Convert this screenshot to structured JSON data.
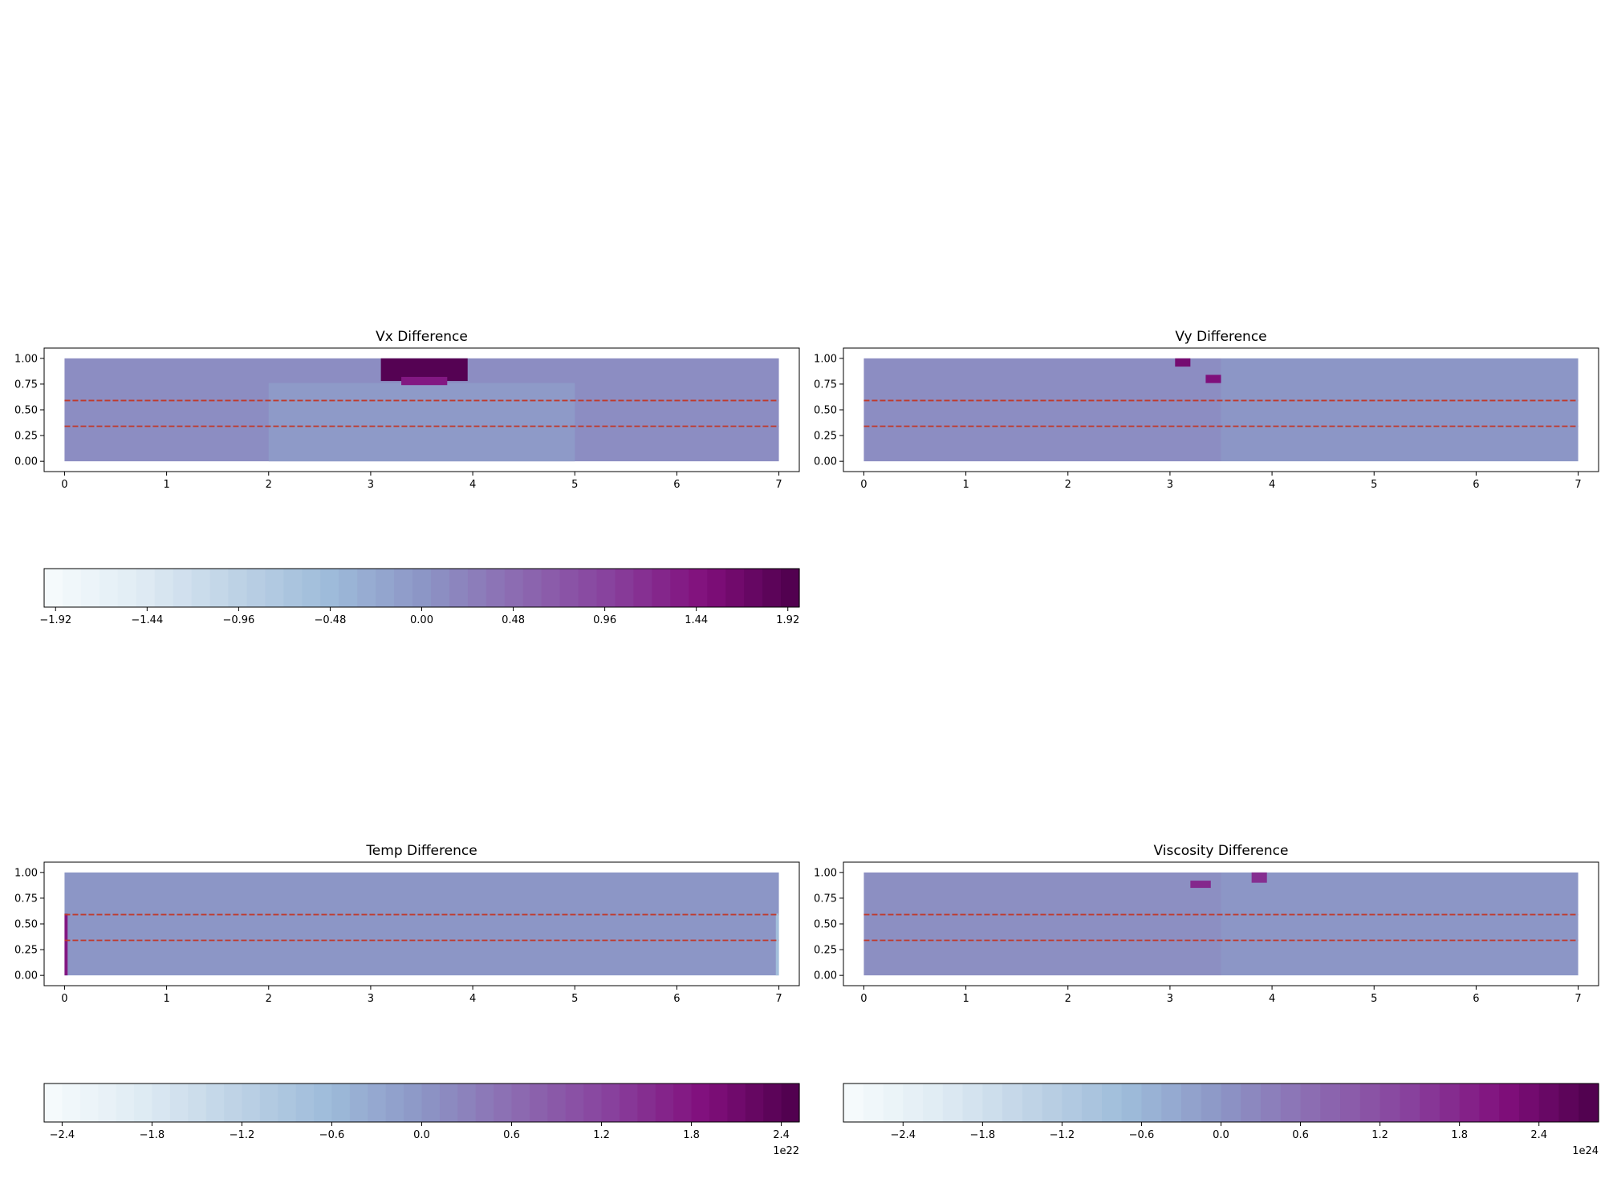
{
  "chart_data": [
    {
      "type": "heatmap",
      "title": "Vx Difference",
      "xlim": [
        -0.2,
        7.2
      ],
      "ylim": [
        -0.1,
        1.1
      ],
      "x_ticks": [
        0,
        1,
        2,
        3,
        4,
        5,
        6,
        7
      ],
      "x_tick_labels": [
        "0",
        "1",
        "2",
        "3",
        "4",
        "5",
        "6",
        "7"
      ],
      "y_ticks": [
        0,
        0.25,
        0.5,
        0.75,
        1.0
      ],
      "y_tick_labels": [
        "0.00",
        "0.25",
        "0.50",
        "0.75",
        "1.00"
      ],
      "field_extent": {
        "x": [
          0,
          7
        ],
        "y": [
          0,
          1
        ]
      },
      "dashed_lines_y": [
        0.59,
        0.34
      ],
      "dashed_line_color": "#c0392b",
      "colormap": "BuPu",
      "regions": [
        {
          "x0": 0,
          "x1": 7,
          "y0": 0,
          "y1": 1,
          "value": 0.1
        },
        {
          "x0": 2.0,
          "x1": 5.0,
          "y0": 0,
          "y1": 0.76,
          "value": -0.05
        },
        {
          "x0": 3.1,
          "x1": 3.95,
          "y0": 0.78,
          "y1": 1.0,
          "value": 1.9
        },
        {
          "x0": 3.3,
          "x1": 3.75,
          "y0": 0.74,
          "y1": 0.82,
          "value": 1.4
        }
      ],
      "colorbar": {
        "ticks": [
          -1.92,
          -1.44,
          -0.96,
          -0.48,
          0,
          0.48,
          0.96,
          1.44,
          1.92
        ],
        "tick_labels": [
          "−1.92",
          "−1.44",
          "−0.96",
          "−0.48",
          "0.00",
          "0.48",
          "0.96",
          "1.44",
          "1.92"
        ],
        "range": [
          -1.98,
          1.98
        ],
        "levels": 41,
        "offset_text": ""
      }
    },
    {
      "type": "heatmap",
      "title": "Vy Difference",
      "xlim": [
        -0.2,
        7.2
      ],
      "ylim": [
        -0.1,
        1.1
      ],
      "x_ticks": [
        0,
        1,
        2,
        3,
        4,
        5,
        6,
        7
      ],
      "x_tick_labels": [
        "0",
        "1",
        "2",
        "3",
        "4",
        "5",
        "6",
        "7"
      ],
      "y_ticks": [
        0,
        0.25,
        0.5,
        0.75,
        1.0
      ],
      "y_tick_labels": [
        "0.00",
        "0.25",
        "0.50",
        "0.75",
        "1.00"
      ],
      "field_extent": {
        "x": [
          0,
          7
        ],
        "y": [
          0,
          1
        ]
      },
      "dashed_lines_y": [
        0.59,
        0.34
      ],
      "dashed_line_color": "#c0392b",
      "colormap": "BuPu",
      "regions": [
        {
          "x0": 0,
          "x1": 3.5,
          "y0": 0,
          "y1": 1,
          "value": 0.1
        },
        {
          "x0": 3.5,
          "x1": 7,
          "y0": 0,
          "y1": 1,
          "value": 0.0
        },
        {
          "x0": 3.05,
          "x1": 3.2,
          "y0": 0.92,
          "y1": 1.0,
          "value": 1.6
        },
        {
          "x0": 3.35,
          "x1": 3.5,
          "y0": 0.76,
          "y1": 0.84,
          "value": 1.5
        }
      ],
      "colorbar": null
    },
    {
      "type": "heatmap",
      "title": "Temp Difference",
      "xlim": [
        -0.2,
        7.2
      ],
      "ylim": [
        -0.1,
        1.1
      ],
      "x_ticks": [
        0,
        1,
        2,
        3,
        4,
        5,
        6,
        7
      ],
      "x_tick_labels": [
        "0",
        "1",
        "2",
        "3",
        "4",
        "5",
        "6",
        "7"
      ],
      "y_ticks": [
        0,
        0.25,
        0.5,
        0.75,
        1.0
      ],
      "y_tick_labels": [
        "0.00",
        "0.25",
        "0.50",
        "0.75",
        "1.00"
      ],
      "field_extent": {
        "x": [
          0,
          7
        ],
        "y": [
          0,
          1
        ]
      },
      "dashed_lines_y": [
        0.59,
        0.34
      ],
      "dashed_line_color": "#c0392b",
      "colormap": "BuPu",
      "regions": [
        {
          "x0": 0,
          "x1": 7,
          "y0": 0,
          "y1": 1,
          "value": 0.0
        },
        {
          "x0": 0,
          "x1": 0.03,
          "y0": 0,
          "y1": 0.6,
          "value": 1.8
        },
        {
          "x0": 6.97,
          "x1": 7,
          "y0": 0,
          "y1": 0.6,
          "value": -0.7
        }
      ],
      "colorbar": {
        "ticks": [
          -2.4,
          -1.8,
          -1.2,
          -0.6,
          0,
          0.6,
          1.2,
          1.8,
          2.4
        ],
        "tick_labels": [
          "−2.4",
          "−1.8",
          "−1.2",
          "−0.6",
          "0.0",
          "0.6",
          "1.2",
          "1.8",
          "2.4"
        ],
        "range": [
          -2.52,
          2.52
        ],
        "levels": 42,
        "offset_text": "1e22"
      }
    },
    {
      "type": "heatmap",
      "title": "Viscosity Difference",
      "xlim": [
        -0.2,
        7.2
      ],
      "ylim": [
        -0.1,
        1.1
      ],
      "x_ticks": [
        0,
        1,
        2,
        3,
        4,
        5,
        6,
        7
      ],
      "x_tick_labels": [
        "0",
        "1",
        "2",
        "3",
        "4",
        "5",
        "6",
        "7"
      ],
      "y_ticks": [
        0,
        0.25,
        0.5,
        0.75,
        1.0
      ],
      "y_tick_labels": [
        "0.00",
        "0.25",
        "0.50",
        "0.75",
        "1.00"
      ],
      "field_extent": {
        "x": [
          0,
          7
        ],
        "y": [
          0,
          1
        ]
      },
      "dashed_lines_y": [
        0.59,
        0.34
      ],
      "dashed_line_color": "#c0392b",
      "colormap": "BuPu",
      "regions": [
        {
          "x0": 0,
          "x1": 3.5,
          "y0": 0,
          "y1": 1,
          "value": 0.12
        },
        {
          "x0": 3.5,
          "x1": 7,
          "y0": 0,
          "y1": 1,
          "value": 0.0
        },
        {
          "x0": 3.2,
          "x1": 3.4,
          "y0": 0.85,
          "y1": 0.92,
          "value": 1.8
        },
        {
          "x0": 3.8,
          "x1": 3.95,
          "y0": 0.9,
          "y1": 1.0,
          "value": 1.7
        }
      ],
      "colorbar": {
        "ticks": [
          -2.4,
          -1.8,
          -1.2,
          -0.6,
          0,
          0.6,
          1.2,
          1.8,
          2.4
        ],
        "tick_labels": [
          "−2.4",
          "−1.8",
          "−1.2",
          "−0.6",
          "0.0",
          "0.6",
          "1.2",
          "1.8",
          "2.4"
        ],
        "range": [
          -2.85,
          2.85
        ],
        "levels": 38,
        "offset_text": "1e24"
      }
    }
  ]
}
